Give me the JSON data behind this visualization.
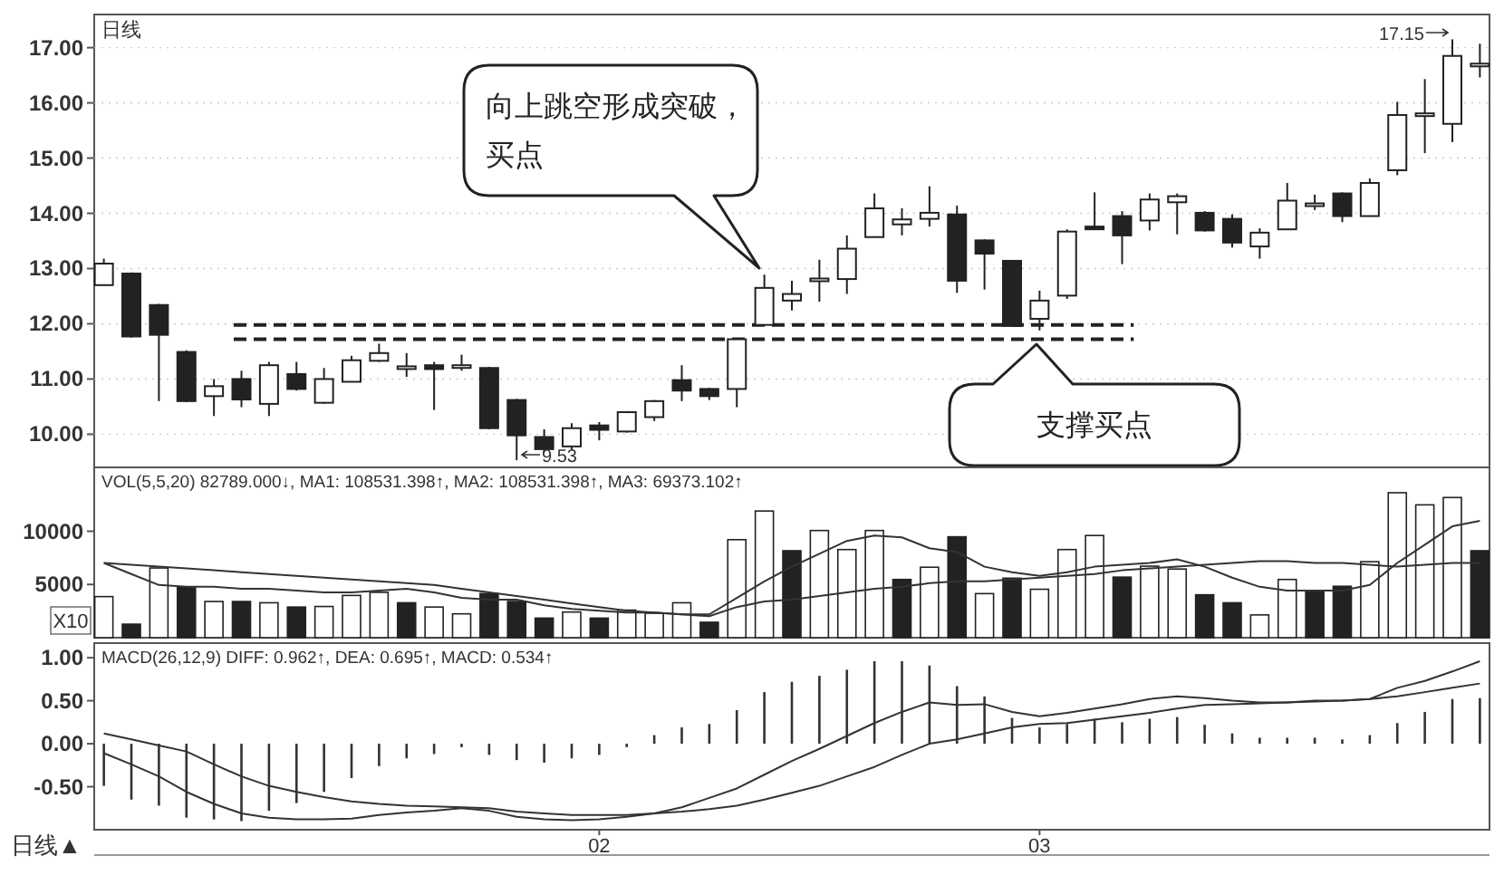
{
  "chart_data": [
    {
      "type": "candlestick",
      "title": "日线",
      "tick_labels": "y",
      "grid": "y",
      "categories": [
        null,
        null,
        null,
        null,
        null,
        null,
        null,
        null,
        null,
        null,
        null,
        null,
        null,
        null,
        null,
        null,
        null,
        null,
        null,
        null,
        null,
        null,
        null,
        null,
        null,
        null,
        null,
        null,
        null,
        null,
        null,
        null,
        null,
        null,
        null,
        null,
        null,
        null,
        null,
        null,
        null,
        null,
        null,
        null,
        null,
        null,
        null,
        null,
        null,
        null,
        null
      ],
      "ohlc": [
        [
          12.7,
          13.18,
          12.7,
          13.09
        ],
        [
          12.91,
          12.93,
          11.75,
          11.77
        ],
        [
          12.34,
          12.36,
          10.6,
          11.8
        ],
        [
          11.49,
          11.52,
          10.58,
          10.6
        ],
        [
          10.69,
          11.0,
          10.33,
          10.87
        ],
        [
          11.0,
          11.15,
          10.49,
          10.63
        ],
        [
          10.55,
          11.31,
          10.33,
          11.25
        ],
        [
          11.09,
          11.31,
          10.79,
          10.82
        ],
        [
          10.57,
          11.2,
          10.55,
          11.0
        ],
        [
          10.95,
          11.42,
          10.95,
          11.34
        ],
        [
          11.33,
          11.64,
          11.31,
          11.47
        ],
        [
          11.22,
          11.47,
          11.04,
          11.23
        ],
        [
          11.25,
          11.31,
          10.44,
          11.18
        ],
        [
          11.24,
          11.44,
          11.15,
          11.25
        ],
        [
          11.2,
          11.22,
          10.09,
          10.11
        ],
        [
          10.62,
          10.64,
          9.53,
          9.98
        ],
        [
          9.95,
          10.09,
          9.67,
          9.73
        ],
        [
          9.78,
          10.2,
          9.73,
          10.11
        ],
        [
          10.16,
          10.22,
          9.89,
          10.08
        ],
        [
          10.05,
          10.42,
          10.03,
          10.4
        ],
        [
          10.31,
          10.62,
          10.24,
          10.6
        ],
        [
          10.98,
          11.25,
          10.6,
          10.79
        ],
        [
          10.82,
          10.84,
          10.62,
          10.69
        ],
        [
          10.82,
          11.74,
          10.49,
          11.72
        ],
        [
          11.98,
          12.89,
          11.98,
          12.65
        ],
        [
          12.42,
          12.78,
          12.24,
          12.54
        ],
        [
          12.8,
          13.16,
          12.4,
          12.82
        ],
        [
          12.81,
          13.6,
          12.54,
          13.36
        ],
        [
          13.57,
          14.36,
          13.57,
          14.09
        ],
        [
          13.8,
          14.09,
          13.6,
          13.89
        ],
        [
          13.9,
          14.49,
          13.76,
          14.01
        ],
        [
          13.98,
          14.14,
          12.56,
          12.78
        ],
        [
          13.51,
          13.53,
          12.62,
          13.27
        ],
        [
          13.14,
          13.14,
          11.96,
          11.96
        ],
        [
          12.09,
          12.6,
          11.88,
          12.42
        ],
        [
          12.51,
          13.71,
          12.45,
          13.67
        ],
        [
          13.76,
          14.38,
          13.73,
          13.74
        ],
        [
          13.95,
          14.04,
          13.08,
          13.6
        ],
        [
          13.87,
          14.36,
          13.69,
          14.25
        ],
        [
          14.2,
          14.36,
          13.62,
          14.31
        ],
        [
          14.01,
          14.04,
          13.67,
          13.69
        ],
        [
          13.9,
          13.98,
          13.38,
          13.47
        ],
        [
          13.4,
          13.73,
          13.18,
          13.65
        ],
        [
          13.71,
          14.55,
          13.71,
          14.23
        ],
        [
          14.17,
          14.34,
          14.06,
          14.18
        ],
        [
          14.36,
          14.38,
          13.84,
          13.95
        ],
        [
          13.95,
          14.63,
          13.95,
          14.55
        ],
        [
          14.78,
          16.02,
          14.69,
          15.78
        ],
        [
          15.8,
          16.43,
          15.09,
          15.81
        ],
        [
          15.62,
          17.15,
          15.29,
          16.85
        ],
        [
          16.7,
          17.07,
          16.46,
          16.71
        ]
      ],
      "colors": [
        "#ffffff",
        "#222222",
        "#222222",
        "#222222",
        "#ffffff",
        "#222222",
        "#ffffff",
        "#222222",
        "#ffffff",
        "#ffffff",
        "#ffffff",
        "#ffffff",
        "#222222",
        "#ffffff",
        "#222222",
        "#222222",
        "#222222",
        "#ffffff",
        "#222222",
        "#ffffff",
        "#ffffff",
        "#222222",
        "#222222",
        "#ffffff",
        "#ffffff",
        "#ffffff",
        "#ffffff",
        "#ffffff",
        "#ffffff",
        "#ffffff",
        "#ffffff",
        "#222222",
        "#222222",
        "#222222",
        "#ffffff",
        "#ffffff",
        "#222222",
        "#222222",
        "#ffffff",
        "#ffffff",
        "#222222",
        "#222222",
        "#ffffff",
        "#ffffff",
        "#ffffff",
        "#222222",
        "#ffffff",
        "#ffffff",
        "#ffffff",
        "#ffffff",
        "#ffffff"
      ],
      "ylim": [
        9.4,
        17.6
      ],
      "yticks": [
        {
          "value": 10,
          "label": "10.00"
        },
        {
          "value": 11,
          "label": "11.00"
        },
        {
          "value": 12,
          "label": "12.00"
        },
        {
          "value": 13,
          "label": "13.00"
        },
        {
          "value": 14,
          "label": "14.00"
        },
        {
          "value": 15,
          "label": "15.00"
        },
        {
          "value": 16,
          "label": "16.00"
        },
        {
          "value": 17,
          "label": "17.00"
        }
      ],
      "ref_lines": [
        {
          "axis": "y",
          "value": 11.98,
          "color": "#222222",
          "line_style": "dashed"
        },
        {
          "axis": "y",
          "value": 11.72,
          "color": "#222222",
          "line_style": "dashed"
        }
      ],
      "annotations": [
        "向上跳空形成突破，买点",
        "支撑买点",
        "9.53",
        "17.15"
      ]
    },
    {
      "type": "bar",
      "subtitle": "VOL(5,5,20) 82789.000↓, MA1: 108531.398↑, MA2: 108531.398↑, MA3: 69373.102↑",
      "ylabel": "X10",
      "tick_labels": "y",
      "categories": [
        null,
        null,
        null,
        null,
        null,
        null,
        null,
        null,
        null,
        null,
        null,
        null,
        null,
        null,
        null,
        null,
        null,
        null,
        null,
        null,
        null,
        null,
        null,
        null,
        null,
        null,
        null,
        null,
        null,
        null,
        null,
        null,
        null,
        null,
        null,
        null,
        null,
        null,
        null,
        null,
        null,
        null,
        null,
        null,
        null,
        null,
        null,
        null,
        null,
        null,
        null
      ],
      "ylim": [
        0,
        16000
      ],
      "yticks": [
        5000,
        10000
      ],
      "series": [
        {
          "type": "bar",
          "values": [
            3860,
            1270,
            6550,
            4720,
            3400,
            3400,
            3280,
            2880,
            2930,
            3970,
            4260,
            3280,
            2880,
            2240,
            4140,
            3400,
            1840,
            2410,
            1840,
            2590,
            2300,
            3280,
            1450,
            9210,
            11900,
            8170,
            10070,
            8280,
            10070,
            5470,
            6620,
            9480,
            4140,
            5590,
            4550,
            8280,
            9600,
            5690,
            6720,
            6450,
            4030,
            3280,
            2140,
            5470,
            4310,
            4830,
            7140,
            13620,
            12480,
            13170,
            8170
          ],
          "colors": [
            "#ffffff",
            "#222222",
            "#ffffff",
            "#222222",
            "#ffffff",
            "#222222",
            "#ffffff",
            "#222222",
            "#ffffff",
            "#ffffff",
            "#ffffff",
            "#222222",
            "#ffffff",
            "#ffffff",
            "#222222",
            "#222222",
            "#222222",
            "#ffffff",
            "#222222",
            "#ffffff",
            "#ffffff",
            "#ffffff",
            "#222222",
            "#ffffff",
            "#ffffff",
            "#222222",
            "#ffffff",
            "#ffffff",
            "#ffffff",
            "#222222",
            "#ffffff",
            "#222222",
            "#ffffff",
            "#222222",
            "#ffffff",
            "#ffffff",
            "#ffffff",
            "#222222",
            "#ffffff",
            "#ffffff",
            "#222222",
            "#222222",
            "#ffffff",
            "#ffffff",
            "#222222",
            "#222222",
            "#ffffff",
            "#ffffff",
            "#ffffff",
            "#ffffff",
            "#222222"
          ]
        },
        {
          "type": "line",
          "color": "#333333",
          "values": [
            7020,
            5980,
            4950,
            4780,
            4780,
            4600,
            4600,
            4430,
            4260,
            4260,
            4430,
            4600,
            4260,
            3740,
            3570,
            3570,
            3050,
            2710,
            2530,
            2360,
            2360,
            2190,
            2190,
            3740,
            5290,
            6670,
            7880,
            9090,
            9600,
            9430,
            8400,
            8050,
            6670,
            6150,
            5810,
            6150,
            6670,
            6840,
            7020,
            7360,
            6670,
            5640,
            4780,
            4430,
            4430,
            4430,
            4950,
            7020,
            8740,
            10460,
            10980
          ]
        },
        {
          "type": "line",
          "color": "#333333",
          "values": [
            7020,
            6840,
            6670,
            6500,
            6330,
            6150,
            5980,
            5810,
            5640,
            5470,
            5290,
            5120,
            4950,
            4600,
            4260,
            3910,
            3570,
            3220,
            2880,
            2530,
            2360,
            2190,
            2020,
            2880,
            3400,
            3570,
            3910,
            4260,
            4600,
            4780,
            5120,
            5290,
            5290,
            5470,
            5640,
            5810,
            5980,
            6330,
            6500,
            6670,
            6840,
            7020,
            7190,
            7190,
            7020,
            7020,
            6840,
            6670,
            6840,
            7020,
            7020
          ]
        }
      ]
    },
    {
      "type": "bar",
      "subtitle": "MACD(26,12,9) DIFF: 0.962↑, DEA: 0.695↑, MACD: 0.534↑",
      "xlabel": "日线▲",
      "categories": [
        null,
        null,
        null,
        null,
        null,
        null,
        null,
        null,
        null,
        null,
        null,
        null,
        null,
        null,
        null,
        null,
        null,
        null,
        "02",
        null,
        null,
        null,
        null,
        null,
        null,
        null,
        null,
        null,
        null,
        null,
        null,
        null,
        null,
        null,
        "03",
        null,
        null,
        null,
        null,
        null,
        null,
        null,
        null,
        null,
        null,
        null,
        null,
        null,
        null,
        null,
        null
      ],
      "ylim": [
        -1.0,
        1.17
      ],
      "yticks": [
        {
          "value": 1,
          "label": "1.00"
        },
        {
          "value": 0.5,
          "label": "0.50"
        },
        {
          "value": 0,
          "label": "0.00"
        },
        {
          "value": -0.5,
          "label": "-0.50"
        }
      ],
      "series": [
        {
          "type": "bar",
          "color": "#333333",
          "values": [
            -0.49,
            -0.65,
            -0.72,
            -0.86,
            -0.88,
            -0.9,
            -0.78,
            -0.69,
            -0.56,
            -0.4,
            -0.26,
            -0.17,
            -0.12,
            -0.04,
            -0.13,
            -0.19,
            -0.22,
            -0.17,
            -0.13,
            -0.04,
            0.1,
            0.19,
            0.23,
            0.39,
            0.6,
            0.72,
            0.79,
            0.86,
            0.96,
            0.96,
            0.91,
            0.67,
            0.55,
            0.3,
            0.19,
            0.23,
            0.29,
            0.25,
            0.29,
            0.31,
            0.22,
            0.12,
            0.07,
            0.07,
            0.07,
            0.05,
            0.1,
            0.24,
            0.37,
            0.52,
            0.53
          ]
        },
        {
          "type": "line",
          "color": "#333333",
          "values": [
            -0.11,
            -0.24,
            -0.38,
            -0.56,
            -0.7,
            -0.81,
            -0.86,
            -0.88,
            -0.88,
            -0.87,
            -0.83,
            -0.8,
            -0.78,
            -0.75,
            -0.78,
            -0.85,
            -0.88,
            -0.89,
            -0.88,
            -0.85,
            -0.81,
            -0.74,
            -0.63,
            -0.52,
            -0.36,
            -0.2,
            -0.06,
            0.09,
            0.24,
            0.37,
            0.48,
            0.45,
            0.46,
            0.37,
            0.32,
            0.36,
            0.41,
            0.46,
            0.52,
            0.55,
            0.53,
            0.5,
            0.48,
            0.48,
            0.5,
            0.5,
            0.52,
            0.65,
            0.73,
            0.84,
            0.96
          ]
        },
        {
          "type": "line",
          "color": "#333333",
          "values": [
            0.12,
            0.05,
            -0.02,
            -0.09,
            -0.24,
            -0.38,
            -0.49,
            -0.56,
            -0.62,
            -0.67,
            -0.7,
            -0.72,
            -0.73,
            -0.74,
            -0.75,
            -0.79,
            -0.81,
            -0.83,
            -0.83,
            -0.83,
            -0.81,
            -0.79,
            -0.76,
            -0.72,
            -0.65,
            -0.57,
            -0.49,
            -0.38,
            -0.27,
            -0.13,
            0.0,
            0.05,
            0.12,
            0.19,
            0.23,
            0.24,
            0.28,
            0.32,
            0.36,
            0.41,
            0.45,
            0.46,
            0.47,
            0.48,
            0.49,
            0.5,
            0.52,
            0.55,
            0.6,
            0.65,
            0.7
          ]
        }
      ]
    }
  ]
}
